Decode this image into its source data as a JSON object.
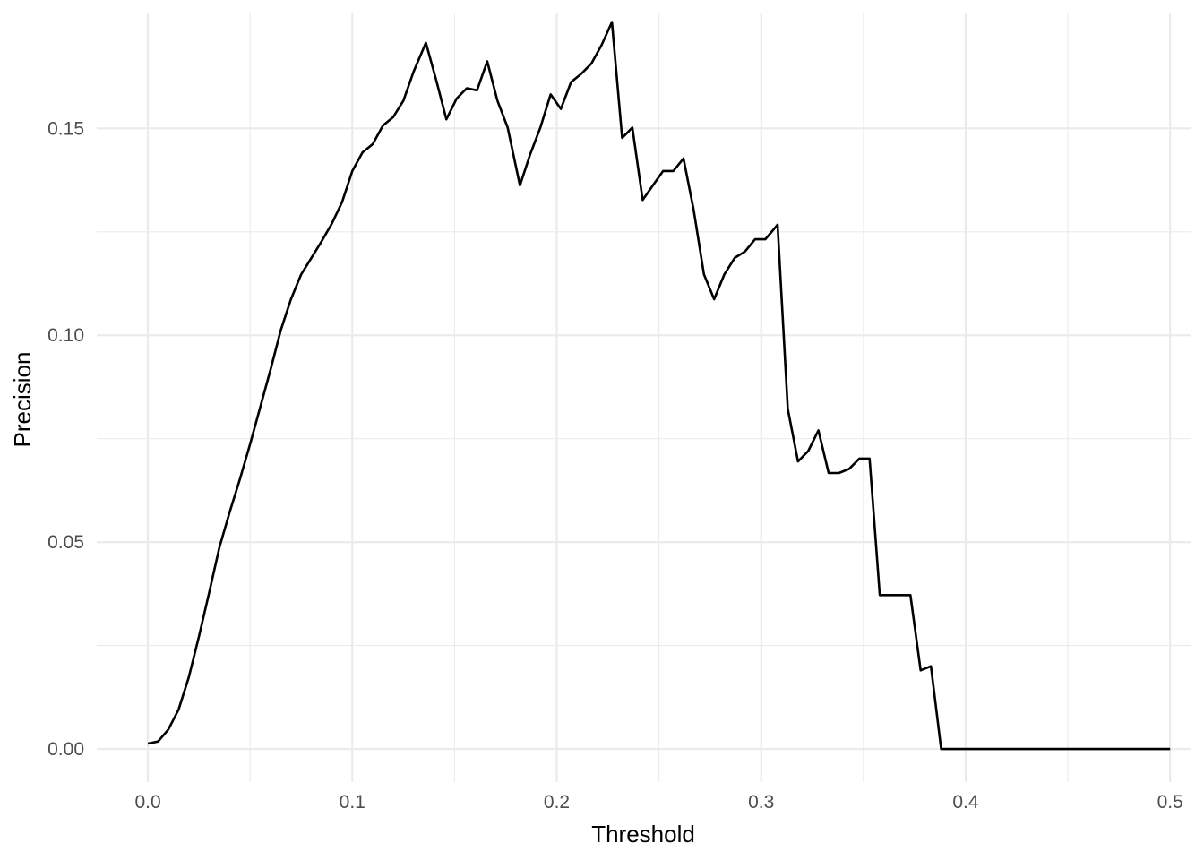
{
  "chart_data": {
    "type": "line",
    "xlabel": "Threshold",
    "ylabel": "Precision",
    "xlim": [
      -0.025,
      0.51
    ],
    "ylim": [
      -0.008,
      0.178
    ],
    "x_ticks": [
      0.0,
      0.1,
      0.2,
      0.3,
      0.4,
      0.5
    ],
    "x_tick_labels": [
      "0.0",
      "0.1",
      "0.2",
      "0.3",
      "0.4",
      "0.5"
    ],
    "y_ticks": [
      0.0,
      0.05,
      0.1,
      0.15
    ],
    "y_tick_labels": [
      "0.00",
      "0.05",
      "0.10",
      "0.15"
    ],
    "x_minor_ticks": [
      0.05,
      0.15,
      0.25,
      0.35,
      0.45
    ],
    "y_minor_ticks": [
      0.025,
      0.075,
      0.125
    ],
    "grid": true,
    "line_color": "#000000",
    "series": [
      {
        "x": [
          0.0,
          0.005,
          0.01,
          0.015,
          0.02,
          0.025,
          0.03,
          0.035,
          0.04,
          0.045,
          0.05,
          0.055,
          0.06,
          0.065,
          0.07,
          0.075,
          0.08,
          0.085,
          0.09,
          0.095,
          0.1,
          0.105,
          0.11,
          0.115,
          0.12,
          0.125,
          0.13,
          0.136,
          0.141,
          0.146,
          0.151,
          0.156,
          0.161,
          0.166,
          0.171,
          0.176,
          0.182,
          0.187,
          0.192,
          0.197,
          0.202,
          0.207,
          0.212,
          0.217,
          0.222,
          0.227,
          0.232,
          0.237,
          0.242,
          0.247,
          0.252,
          0.257,
          0.262,
          0.267,
          0.272,
          0.277,
          0.282,
          0.287,
          0.292,
          0.297,
          0.302,
          0.308,
          0.313,
          0.318,
          0.323,
          0.328,
          0.333,
          0.338,
          0.343,
          0.348,
          0.353,
          0.358,
          0.363,
          0.368,
          0.373,
          0.378,
          0.383,
          0.388,
          0.393,
          0.5
        ],
        "y": [
          0.0013,
          0.0018,
          0.0047,
          0.0095,
          0.0173,
          0.0272,
          0.0378,
          0.0487,
          0.0572,
          0.0652,
          0.0737,
          0.0827,
          0.0917,
          0.1012,
          0.1087,
          0.1147,
          0.1187,
          0.1227,
          0.127,
          0.1322,
          0.1397,
          0.1442,
          0.1462,
          0.1507,
          0.1527,
          0.1567,
          0.1637,
          0.1707,
          0.1617,
          0.1522,
          0.1572,
          0.1597,
          0.1592,
          0.1662,
          0.1567,
          0.1502,
          0.1362,
          0.1437,
          0.1502,
          0.1582,
          0.1547,
          0.1612,
          0.1632,
          0.1657,
          0.1702,
          0.1757,
          0.1477,
          0.1502,
          0.1327,
          0.1362,
          0.1397,
          0.1397,
          0.1427,
          0.1302,
          0.1147,
          0.1087,
          0.1147,
          0.1187,
          0.1202,
          0.1232,
          0.1232,
          0.1267,
          0.0822,
          0.0695,
          0.072,
          0.077,
          0.0667,
          0.0667,
          0.0677,
          0.0702,
          0.0702,
          0.0372,
          0.0372,
          0.0372,
          0.0372,
          0.019,
          0.02,
          0.0,
          0.0,
          0.0
        ]
      }
    ]
  }
}
